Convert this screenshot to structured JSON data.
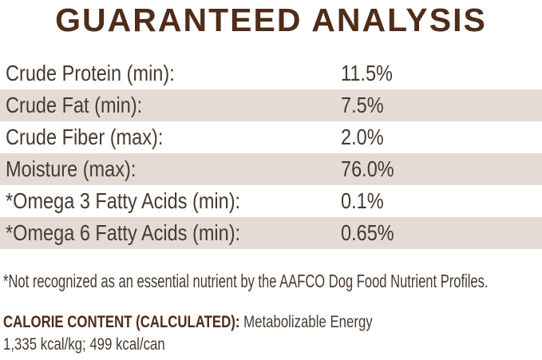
{
  "title": "GUARANTEED ANALYSIS",
  "analysis_table": {
    "rows": [
      {
        "label": "Crude Protein (min):",
        "value": "11.5%"
      },
      {
        "label": "Crude Fat (min):",
        "value": "7.5%"
      },
      {
        "label": "Crude Fiber (max):",
        "value": "2.0%"
      },
      {
        "label": "Moisture (max):",
        "value": "76.0%"
      },
      {
        "label": "*Omega 3 Fatty Acids (min):",
        "value": "0.1%"
      },
      {
        "label": "*Omega 6 Fatty Acids (min):",
        "value": "0.65%"
      }
    ]
  },
  "footnote": "*Not recognized as an essential nutrient by the AAFCO Dog Food Nutrient Profiles.",
  "calorie_content": {
    "heading": "CALORIE CONTENT (CALCULATED):",
    "description": "Metabolizable Energy",
    "values": "1,335 kcal/kg; 499 kcal/can"
  },
  "colors": {
    "title_brown": "#4f2d1a",
    "body_text": "#473a31",
    "stripe_beige": "#e3dcd6",
    "background": "#ffffff"
  }
}
